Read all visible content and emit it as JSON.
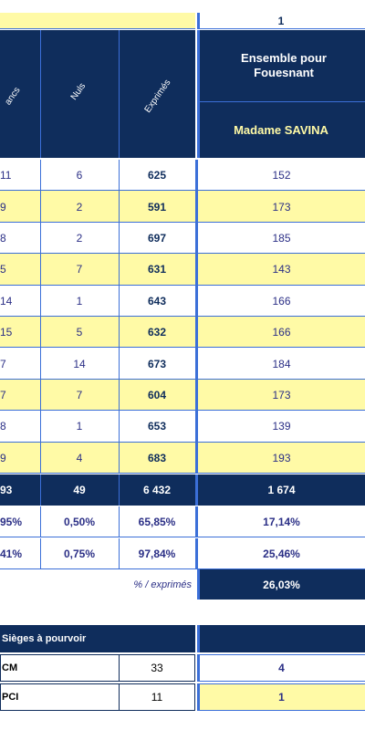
{
  "header": {
    "column_number": "1",
    "col_headers": [
      "ancs",
      "Nuls",
      "Exprimés"
    ],
    "group_title": "Ensemble pour Fouesnant",
    "candidate": "Madame SAVINA"
  },
  "rows": [
    {
      "blancs": "11",
      "nuls": "6",
      "exprimes": "625",
      "savina": "152"
    },
    {
      "blancs": "9",
      "nuls": "2",
      "exprimes": "591",
      "savina": "173"
    },
    {
      "blancs": "8",
      "nuls": "2",
      "exprimes": "697",
      "savina": "185"
    },
    {
      "blancs": "5",
      "nuls": "7",
      "exprimes": "631",
      "savina": "143"
    },
    {
      "blancs": "14",
      "nuls": "1",
      "exprimes": "643",
      "savina": "166"
    },
    {
      "blancs": "15",
      "nuls": "5",
      "exprimes": "632",
      "savina": "166"
    },
    {
      "blancs": "7",
      "nuls": "14",
      "exprimes": "673",
      "savina": "184"
    },
    {
      "blancs": "7",
      "nuls": "7",
      "exprimes": "604",
      "savina": "173"
    },
    {
      "blancs": "8",
      "nuls": "1",
      "exprimes": "653",
      "savina": "139"
    },
    {
      "blancs": "9",
      "nuls": "4",
      "exprimes": "683",
      "savina": "193"
    }
  ],
  "totals": {
    "blancs": "93",
    "nuls": "49",
    "exprimes": "6 432",
    "savina": "1 674"
  },
  "pct_inscrits": {
    "blancs": "95%",
    "nuls": "0,50%",
    "exprimes": "65,85%",
    "savina": "17,14%"
  },
  "pct_votants": {
    "blancs": "41%",
    "nuls": "0,75%",
    "exprimes": "97,84%",
    "savina": "25,46%"
  },
  "pct_exprimes": {
    "label": "% / exprimés",
    "savina": "26,03%"
  },
  "seats": {
    "header": "Sièges à pourvoir",
    "rows": [
      {
        "label": "CM",
        "total": "33",
        "value": "4"
      },
      {
        "label": "PCI",
        "total": "11",
        "value": "1"
      }
    ]
  }
}
